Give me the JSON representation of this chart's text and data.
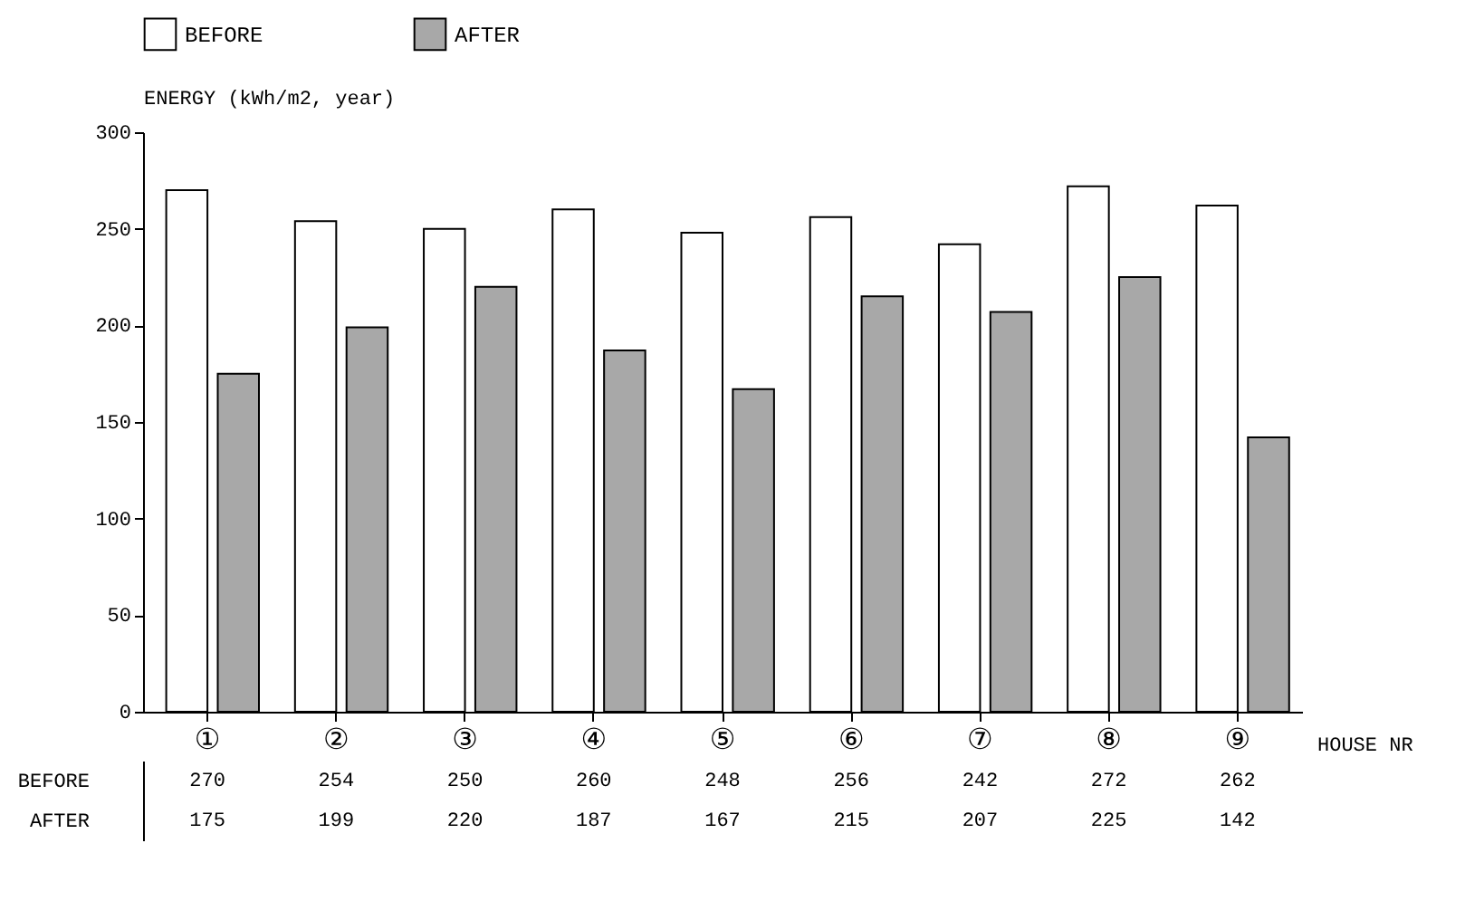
{
  "chart_data": {
    "type": "bar",
    "ylabel": "ENERGY (kWh/m2, year)",
    "xlabel": "HOUSE NR",
    "categories": [
      "①",
      "②",
      "③",
      "④",
      "⑤",
      "⑥",
      "⑦",
      "⑧",
      "⑨"
    ],
    "series": [
      {
        "name": "BEFORE",
        "color": "#ffffff",
        "values": [
          270,
          254,
          250,
          260,
          248,
          256,
          242,
          272,
          262
        ]
      },
      {
        "name": "AFTER",
        "color": "#a8a8a8",
        "values": [
          175,
          199,
          220,
          187,
          167,
          215,
          207,
          225,
          142
        ]
      }
    ],
    "ylim": [
      0,
      300
    ],
    "yticks": [
      0,
      50,
      100,
      150,
      200,
      250,
      300
    ],
    "legend": "top",
    "data_labels": true
  }
}
